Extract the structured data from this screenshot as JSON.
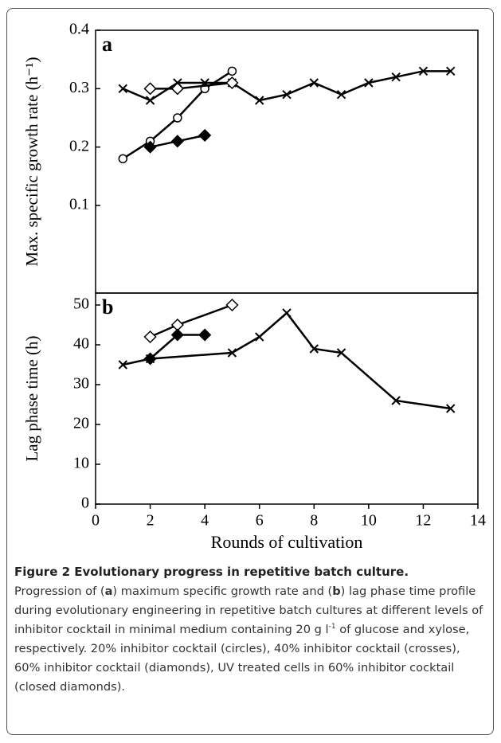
{
  "chart_data": [
    {
      "type": "line",
      "panel_label": "a",
      "y_label": "Max. specific growth rate (h⁻¹)",
      "xlim": [
        0,
        14
      ],
      "ylim": [
        -0.05,
        0.4
      ],
      "yticks": [
        0.1,
        0.2,
        0.3,
        0.4
      ],
      "series": [
        {
          "marker": "circle",
          "color": "#000000",
          "x": [
            1,
            2,
            3,
            4,
            5
          ],
          "values": [
            0.18,
            0.21,
            0.25,
            0.3,
            0.33
          ]
        },
        {
          "marker": "cross",
          "color": "#000000",
          "x": [
            1,
            2,
            3,
            4,
            5,
            6,
            7,
            8,
            9,
            10,
            11,
            12,
            13
          ],
          "values": [
            0.3,
            0.28,
            0.31,
            0.31,
            0.31,
            0.28,
            0.29,
            0.31,
            0.29,
            0.31,
            0.32,
            0.33,
            0.33
          ]
        },
        {
          "marker": "open-diamond",
          "color": "#000000",
          "x": [
            2,
            3,
            5
          ],
          "values": [
            0.3,
            0.3,
            0.31
          ]
        },
        {
          "marker": "closed-diamond",
          "color": "#000000",
          "x": [
            2,
            3,
            4
          ],
          "values": [
            0.2,
            0.21,
            0.22
          ]
        }
      ]
    },
    {
      "type": "line",
      "panel_label": "b",
      "y_label": "Lag phase time (h)",
      "x_label": "Rounds of cultivation",
      "xlim": [
        0,
        14
      ],
      "xticks": [
        0,
        2,
        4,
        6,
        8,
        10,
        12,
        14
      ],
      "ylim": [
        0,
        53
      ],
      "yticks": [
        0,
        10,
        20,
        30,
        40,
        50
      ],
      "series": [
        {
          "marker": "cross",
          "color": "#000000",
          "x": [
            1,
            2,
            5,
            6,
            7,
            8,
            9,
            11,
            13
          ],
          "values": [
            35,
            36.5,
            38,
            42,
            48,
            39,
            38,
            26,
            24
          ]
        },
        {
          "marker": "open-diamond",
          "color": "#000000",
          "x": [
            2,
            3,
            5
          ],
          "values": [
            42,
            45,
            50
          ]
        },
        {
          "marker": "closed-diamond",
          "color": "#000000",
          "x": [
            2,
            3,
            4
          ],
          "values": [
            36.5,
            42.5,
            42.5
          ]
        }
      ]
    }
  ],
  "caption": {
    "title": "Figure 2 Evolutionary progress in repetitive batch culture.",
    "runs": [
      "Progression of (",
      "a",
      ") maximum specific growth rate and (",
      "b",
      ") lag phase time profile during evolutionary engineering in repetitive batch cultures at different levels of inhibitor cocktail in minimal medium containing 20 g l",
      "-1",
      " of glucose and xylose, respectively. 20% inhibitor cocktail (circles), 40% inhibitor cocktail (crosses), 60% inhibitor cocktail (diamonds), UV treated cells in 60% inhibitor cocktail (closed diamonds)."
    ]
  }
}
